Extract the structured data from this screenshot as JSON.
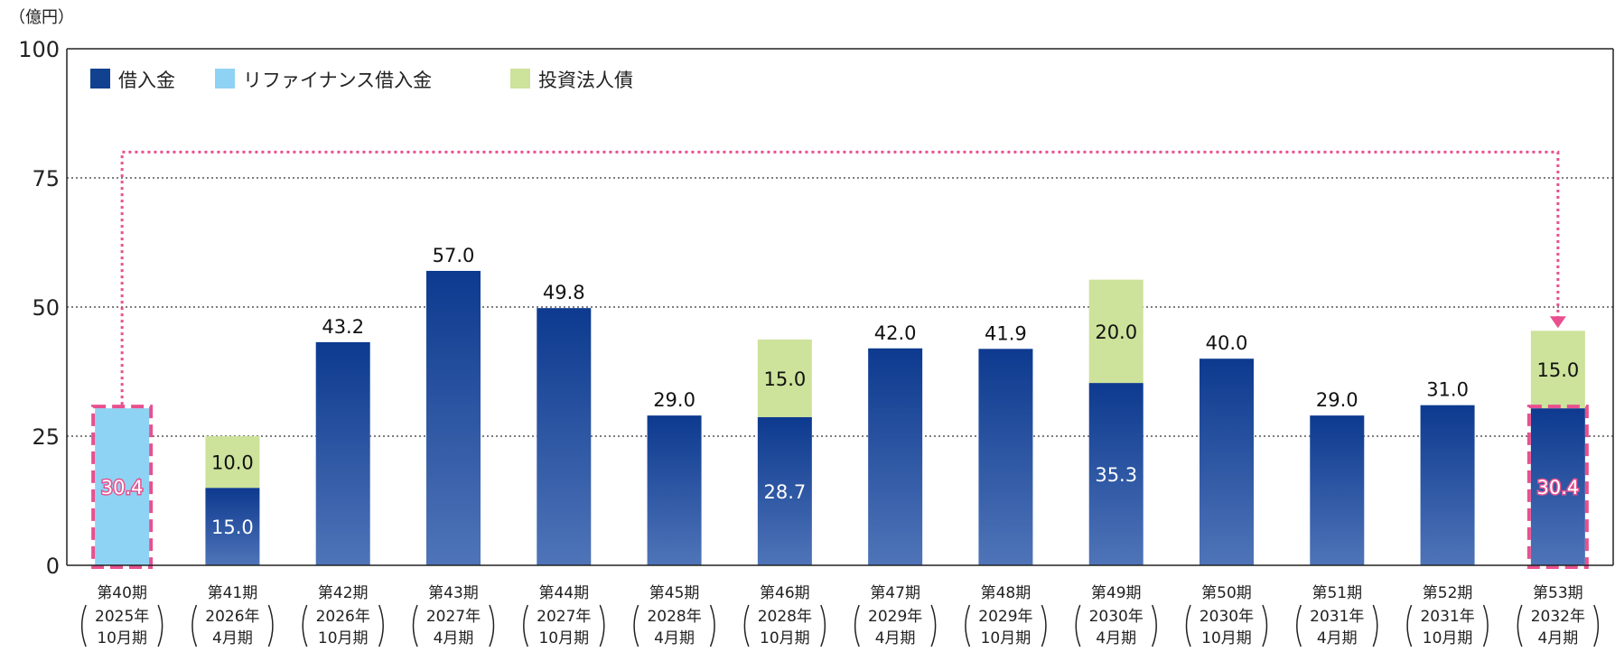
{
  "chart_data": {
    "type": "bar",
    "stacked": true,
    "unit_label": "（億円）",
    "ylim": [
      0,
      100
    ],
    "yticks": [
      0,
      25,
      50,
      75,
      100
    ],
    "grid": "horizontal dotted",
    "legend_position": "top-left",
    "colors": {
      "借入金": "#1f4a9e",
      "リファイナンス借入金": "#8fd3f4",
      "投資法人債": "#cde29a",
      "highlight": "#e8508f"
    },
    "categories": [
      {
        "period": "第40期",
        "year": "2025年",
        "month": "10月期"
      },
      {
        "period": "第41期",
        "year": "2026年",
        "month": "4月期"
      },
      {
        "period": "第42期",
        "year": "2026年",
        "month": "10月期"
      },
      {
        "period": "第43期",
        "year": "2027年",
        "month": "4月期"
      },
      {
        "period": "第44期",
        "year": "2027年",
        "month": "10月期"
      },
      {
        "period": "第45期",
        "year": "2028年",
        "month": "4月期"
      },
      {
        "period": "第46期",
        "year": "2028年",
        "month": "10月期"
      },
      {
        "period": "第47期",
        "year": "2029年",
        "month": "4月期"
      },
      {
        "period": "第48期",
        "year": "2029年",
        "month": "10月期"
      },
      {
        "period": "第49期",
        "year": "2030年",
        "month": "4月期"
      },
      {
        "period": "第50期",
        "year": "2030年",
        "month": "10月期"
      },
      {
        "period": "第51期",
        "year": "2031年",
        "month": "4月期"
      },
      {
        "period": "第52期",
        "year": "2031年",
        "month": "10月期"
      },
      {
        "period": "第53期",
        "year": "2032年",
        "month": "4月期"
      }
    ],
    "series": [
      {
        "name": "借入金",
        "values": [
          0,
          15.0,
          43.2,
          57.0,
          49.8,
          29.0,
          28.7,
          42.0,
          41.9,
          35.3,
          40.0,
          29.0,
          31.0,
          30.4
        ]
      },
      {
        "name": "リファイナンス借入金",
        "values": [
          30.4,
          0,
          0,
          0,
          0,
          0,
          0,
          0,
          0,
          0,
          0,
          0,
          0,
          0
        ]
      },
      {
        "name": "投資法人債",
        "values": [
          0,
          10.0,
          0,
          0,
          0,
          0,
          15.0,
          0,
          0,
          20.0,
          0,
          0,
          0,
          15.0
        ]
      }
    ],
    "labels": [
      {
        "text": "30.4",
        "style": "pink"
      },
      {
        "text": "15.0",
        "text2": "10.0"
      },
      {
        "text": "43.2"
      },
      {
        "text": "57.0"
      },
      {
        "text": "49.8"
      },
      {
        "text": "29.0"
      },
      {
        "text": "28.7",
        "text2": "15.0"
      },
      {
        "text": "42.0"
      },
      {
        "text": "41.9"
      },
      {
        "text": "35.3",
        "text2": "20.0"
      },
      {
        "text": "40.0"
      },
      {
        "text": "29.0"
      },
      {
        "text": "31.0"
      },
      {
        "text": "30.4",
        "text2": "15.0",
        "style": "pink"
      }
    ],
    "refinance_arrow": {
      "from": "第40期",
      "to": "第53期"
    }
  }
}
